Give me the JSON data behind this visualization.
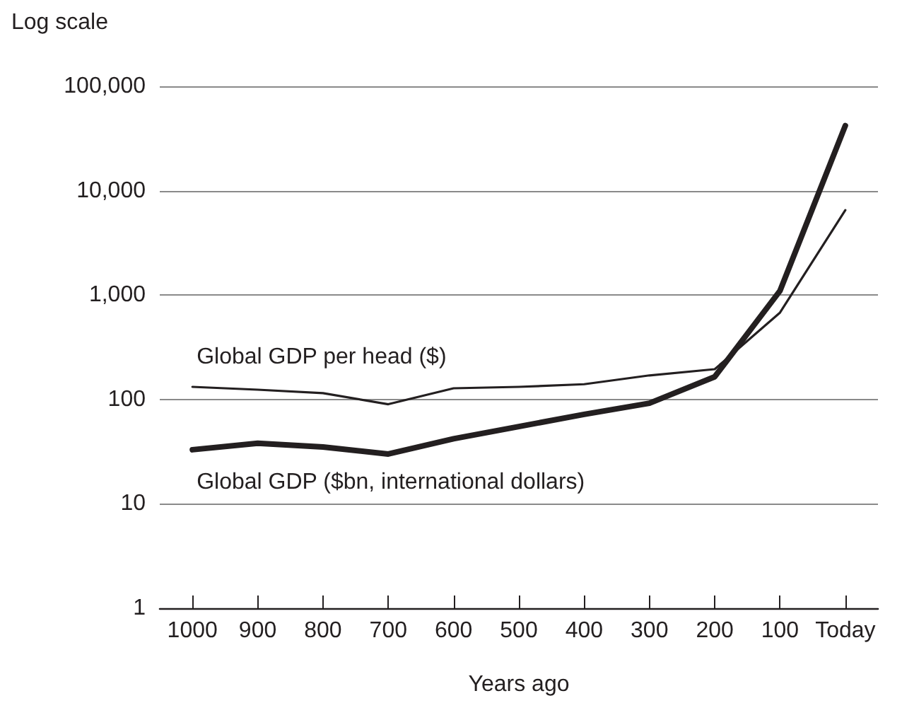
{
  "chart_data": {
    "type": "line",
    "xlabel": "Years ago",
    "ylabel": "Log scale",
    "categories": [
      "1000",
      "900",
      "800",
      "700",
      "600",
      "500",
      "400",
      "300",
      "200",
      "100",
      "Today"
    ],
    "series": [
      {
        "name": "Global GDP per head ($)",
        "color": "#231f20",
        "values": [
          132,
          124,
          115,
          90,
          128,
          132,
          140,
          170,
          195,
          680,
          6500
        ]
      },
      {
        "name": "Global GDP ($bn, international dollars)",
        "color": "#231f20",
        "values": [
          33,
          38,
          35,
          30,
          42,
          55,
          72,
          92,
          165,
          1100,
          42000
        ]
      }
    ],
    "ylim": [
      1,
      100000
    ],
    "yticks": [
      1,
      10,
      100,
      {
        "value": 1000,
        "label": "1,000"
      },
      {
        "value": 10000,
        "label": "10,000"
      },
      {
        "value": 100000,
        "label": "100,000"
      }
    ],
    "log": true,
    "grid": "y",
    "legend": false,
    "marker": "none",
    "line_style": "solid"
  }
}
